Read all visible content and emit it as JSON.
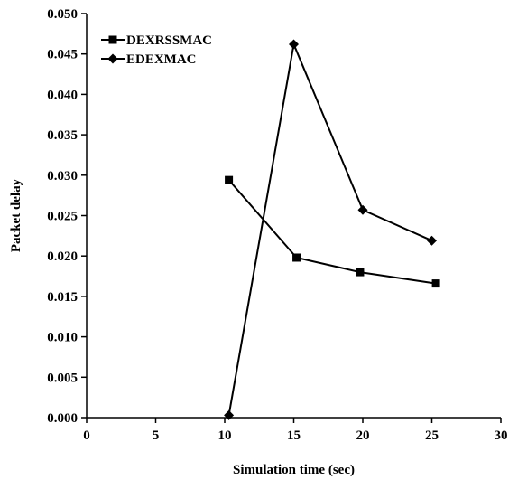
{
  "chart_data": {
    "type": "line",
    "xlabel": "Simulation time (sec)",
    "ylabel": "Packet delay",
    "xlim": [
      0,
      30
    ],
    "ylim": [
      0,
      0.05
    ],
    "x_ticks": [
      "0",
      "5",
      "10",
      "15",
      "20",
      "25",
      "30"
    ],
    "y_ticks": [
      "0.000",
      "0.005",
      "0.010",
      "0.015",
      "0.020",
      "0.025",
      "0.030",
      "0.035",
      "0.040",
      "0.045",
      "0.050"
    ],
    "grid": false,
    "legend_position": "top-left",
    "series": [
      {
        "name": "DEXRSSMAC",
        "marker": "square",
        "color": "#000000",
        "x": [
          10.3,
          15.2,
          19.8,
          25.3
        ],
        "y": [
          0.0294,
          0.0198,
          0.018,
          0.0166
        ]
      },
      {
        "name": "EDEXMAC",
        "marker": "diamond",
        "color": "#000000",
        "x": [
          10.3,
          15.0,
          20.0,
          25.0
        ],
        "y": [
          0.0003,
          0.0462,
          0.0257,
          0.0219
        ]
      }
    ]
  }
}
